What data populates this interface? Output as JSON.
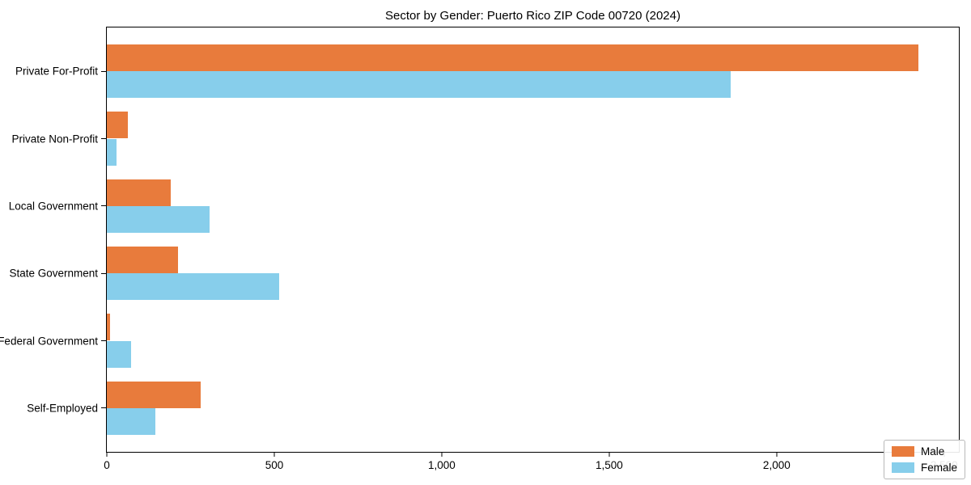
{
  "title": "Sector by Gender: Puerto Rico ZIP Code 00720 (2024)",
  "colors": {
    "male": "#E87B3C",
    "female": "#87CEEB",
    "frame": "#000000",
    "background": "#FFFFFF",
    "legend_border": "#B9B9B9"
  },
  "chart_data": {
    "type": "bar",
    "orientation": "horizontal",
    "title": "Sector by Gender: Puerto Rico ZIP Code 00720 (2024)",
    "categories": [
      "Private For-Profit",
      "Private Non-Profit",
      "Local Government",
      "State Government",
      "Federal Government",
      "Self-Employed"
    ],
    "series": [
      {
        "name": "Male",
        "color": "#E87B3C",
        "values": [
          2423,
          62,
          191,
          212,
          9,
          280
        ]
      },
      {
        "name": "Female",
        "color": "#87CEEB",
        "values": [
          1863,
          30,
          308,
          515,
          72,
          145
        ]
      }
    ],
    "xlabel": "",
    "ylabel": "",
    "xlim": [
      0,
      2544
    ],
    "xticks": [
      0,
      500,
      1000,
      1500,
      2000,
      2500
    ],
    "xtick_labels": [
      "0",
      "500",
      "1,000",
      "1,500",
      "2,000",
      "2,500"
    ],
    "bar_height_units": 0.4,
    "grid": false,
    "legend": {
      "position": "lower right",
      "entries": [
        "Male",
        "Female"
      ]
    }
  }
}
